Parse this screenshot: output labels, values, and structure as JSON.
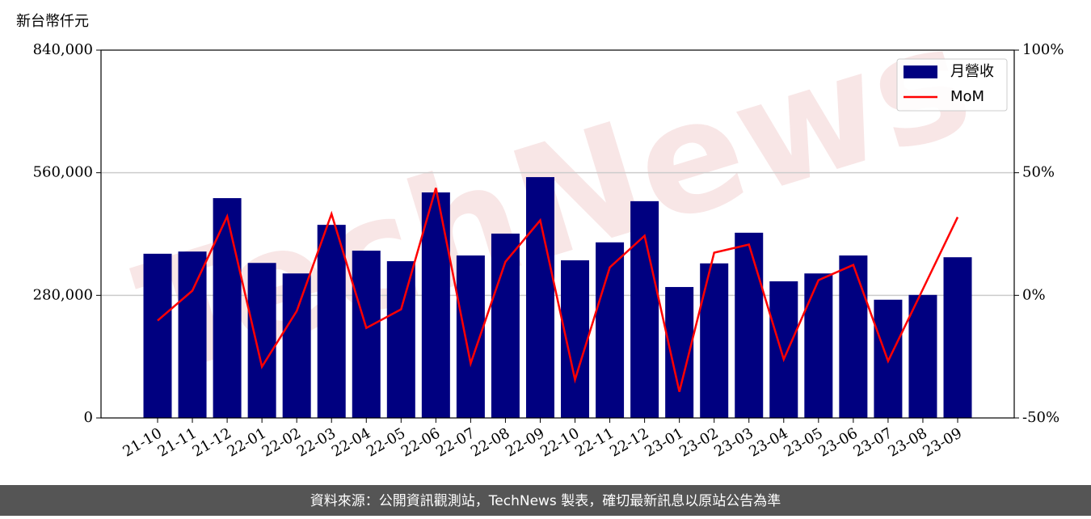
{
  "chart_data": {
    "type": "bar_line",
    "y_label": "新台幣仟元",
    "watermark": "TechNews",
    "footer": "資料來源：公開資訊觀測站，TechNews 製表，確切最新訊息以原站公告為準",
    "categories": [
      "21-10",
      "21-11",
      "21-12",
      "22-01",
      "22-02",
      "22-03",
      "22-04",
      "22-05",
      "22-06",
      "22-07",
      "22-08",
      "22-09",
      "22-10",
      "22-11",
      "22-12",
      "23-01",
      "23-02",
      "23-03",
      "23-04",
      "23-05",
      "23-06",
      "23-07",
      "23-08",
      "23-09"
    ],
    "series": [
      {
        "name": "月營收",
        "type": "bar",
        "color": "#000080",
        "values": [
          375000,
          380000,
          502000,
          354000,
          330000,
          441000,
          382000,
          358000,
          515000,
          371000,
          421000,
          550000,
          360000,
          401000,
          495000,
          299000,
          353000,
          423000,
          312000,
          330000,
          371000,
          270000,
          281000,
          367000
        ]
      },
      {
        "name": "MoM",
        "type": "line",
        "axis": "y2",
        "color": "#ff0000",
        "values": [
          -10.3,
          1.9,
          32.2,
          -29.1,
          -6.4,
          33.2,
          -13.3,
          -5.7,
          43.8,
          -27.8,
          13.7,
          30.6,
          -34.4,
          11.4,
          24.3,
          -39.3,
          17.4,
          20.7,
          -26.1,
          6.2,
          12.4,
          -26.8,
          2.5,
          31.9
        ]
      }
    ],
    "ylim": [
      0,
      840000
    ],
    "yticks": [
      0,
      {
        "value": 280000,
        "label": "280,000"
      },
      {
        "value": 560000,
        "label": "560,000"
      },
      {
        "value": 840000,
        "label": "840,000"
      }
    ],
    "y2lim": [
      -50,
      100
    ],
    "y2ticks": [
      {
        "value": -50,
        "label": "-50%"
      },
      {
        "value": 0,
        "label": "0%"
      },
      {
        "value": 50,
        "label": "50%"
      },
      {
        "value": 100,
        "label": "100%"
      }
    ],
    "grid": true,
    "legend": "upper right"
  }
}
